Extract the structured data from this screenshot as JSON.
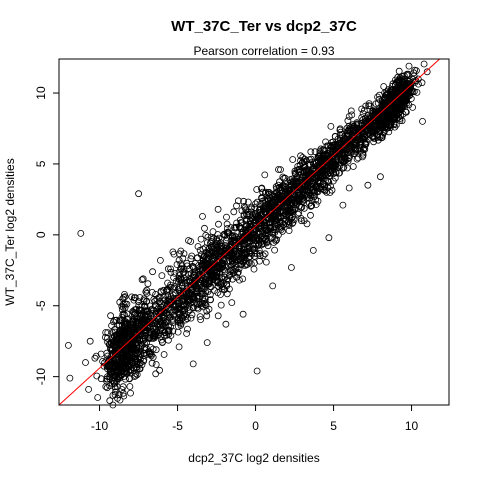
{
  "chart_data": {
    "type": "scatter",
    "title": "WT_37C_Ter vs dcp2_37C",
    "subtitle": "Pearson correlation =  0.93",
    "xlabel": "dcp2_37C log2 densities",
    "ylabel": "WT_37C_Ter log2 densities",
    "xlim": [
      -12.6,
      12.4
    ],
    "ylim": [
      -12.0,
      12.4
    ],
    "xticks": [
      -10,
      -5,
      0,
      5,
      10
    ],
    "yticks": [
      -10,
      -5,
      0,
      5,
      10
    ],
    "grid": false,
    "marker": "open-circle",
    "point_color": "#000000",
    "fit_line": {
      "slope": 1.0,
      "intercept": 0.6,
      "color": "#ff0000"
    },
    "trend": {
      "slope": 1.0,
      "intercept": 0.4,
      "x_range": [
        -8.5,
        9.0
      ]
    },
    "points": [
      [
        -12.0,
        -7.8
      ],
      [
        -11.9,
        -10.1
      ],
      [
        -11.2,
        0.1
      ],
      [
        -10.9,
        -9.0
      ],
      [
        -10.7,
        -10.9
      ],
      [
        -10.6,
        -7.5
      ],
      [
        -10.3,
        -8.7
      ],
      [
        -9.9,
        -8.4
      ],
      [
        -9.6,
        -10.7
      ],
      [
        -9.3,
        -8.0
      ],
      [
        -9.1,
        -9.2
      ],
      [
        -8.9,
        -10.0
      ],
      [
        -8.7,
        -7.3
      ],
      [
        -8.5,
        -5.6
      ],
      [
        -8.4,
        -4.2
      ],
      [
        -8.2,
        -8.9
      ],
      [
        -8.0,
        -6.3
      ],
      [
        -7.8,
        -4.6
      ],
      [
        -7.6,
        -9.5
      ],
      [
        -7.5,
        2.9
      ],
      [
        -7.2,
        -3.1
      ],
      [
        -7.0,
        -8.0
      ],
      [
        -6.9,
        -6.6
      ],
      [
        -6.6,
        -2.6
      ],
      [
        -6.4,
        -9.8
      ],
      [
        -6.1,
        -1.8
      ],
      [
        -5.8,
        -6.9
      ],
      [
        -5.3,
        -1.2
      ],
      [
        -4.9,
        -7.9
      ],
      [
        -4.3,
        -0.4
      ],
      [
        -4.0,
        -9.1
      ],
      [
        -3.4,
        1.3
      ],
      [
        -3.1,
        -7.6
      ],
      [
        -2.4,
        1.8
      ],
      [
        -1.9,
        -6.3
      ],
      [
        -1.1,
        2.4
      ],
      [
        -0.8,
        -5.6
      ],
      [
        0.1,
        -9.6
      ],
      [
        0.4,
        3.3
      ],
      [
        1.1,
        -3.6
      ],
      [
        1.6,
        4.6
      ],
      [
        2.3,
        -2.3
      ],
      [
        3.0,
        5.1
      ],
      [
        3.7,
        -1.1
      ],
      [
        4.1,
        5.6
      ],
      [
        4.7,
        -0.2
      ],
      [
        5.1,
        6.4
      ],
      [
        5.6,
        2.1
      ],
      [
        6.0,
        3.3
      ],
      [
        6.5,
        7.0
      ],
      [
        7.2,
        3.5
      ],
      [
        7.6,
        8.0
      ],
      [
        8.0,
        4.1
      ],
      [
        8.3,
        8.6
      ],
      [
        8.7,
        9.2
      ],
      [
        9.2,
        9.5
      ],
      [
        9.6,
        9.8
      ],
      [
        10.7,
        8.0
      ],
      [
        11.0,
        11.5
      ]
    ],
    "cloud_point_count": 3200
  }
}
